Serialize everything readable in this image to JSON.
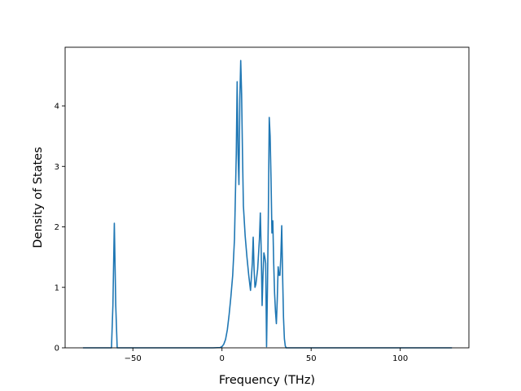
{
  "chart_data": {
    "type": "line",
    "title": "",
    "xlabel": "Frequency (THz)",
    "ylabel": "Density of States",
    "xlim": [
      -88,
      138.5
    ],
    "ylim": [
      0,
      4.97
    ],
    "x_ticks": [
      -50,
      0,
      50,
      100
    ],
    "x_tick_labels": [
      "−50",
      "0",
      "50",
      "100"
    ],
    "y_ticks": [
      0,
      1,
      2,
      3,
      4
    ],
    "y_tick_labels": [
      "0",
      "1",
      "2",
      "3",
      "4"
    ],
    "grid": false,
    "legend": "none",
    "series": [
      {
        "color": "#1f77b4",
        "x": [
          -78,
          -62,
          -61.2,
          -60.4,
          -59.6,
          -58.8,
          -50,
          -20,
          -5,
          -1,
          0,
          1,
          2,
          3,
          4,
          5,
          6,
          7,
          8,
          8.5,
          9,
          9.5,
          10,
          10.5,
          11,
          11.5,
          12,
          13,
          14,
          15,
          16,
          17,
          17.5,
          18,
          18.5,
          19,
          20,
          21,
          21.5,
          22,
          22.5,
          23,
          23.5,
          24,
          24.5,
          25,
          25.5,
          26,
          26.5,
          27,
          27.5,
          28,
          28.5,
          29,
          29.5,
          30,
          30.5,
          31,
          31.5,
          32,
          32.5,
          33,
          33.5,
          34,
          34.5,
          35,
          35.5,
          36,
          36.5,
          37,
          37.5,
          38,
          50,
          100,
          129
        ],
        "y": [
          0,
          0,
          0.7,
          2.06,
          0.7,
          0,
          0,
          0,
          0,
          0.005,
          0.02,
          0.06,
          0.14,
          0.3,
          0.55,
          0.85,
          1.2,
          1.8,
          3.2,
          4.4,
          3.2,
          2.7,
          4.1,
          4.75,
          4.2,
          3.2,
          2.35,
          1.85,
          1.5,
          1.2,
          0.95,
          1.4,
          1.83,
          1.3,
          1.0,
          1.05,
          1.3,
          1.8,
          2.23,
          1.6,
          0.7,
          1.2,
          1.57,
          1.5,
          1.4,
          0.02,
          1.0,
          2.2,
          3.81,
          3.5,
          2.8,
          1.9,
          2.1,
          1.4,
          0.9,
          0.6,
          0.4,
          0.8,
          1.34,
          1.2,
          1.2,
          1.5,
          2.02,
          1.2,
          0.5,
          0.15,
          0.03,
          0,
          0,
          0,
          0,
          0,
          0,
          0,
          0
        ]
      }
    ]
  }
}
